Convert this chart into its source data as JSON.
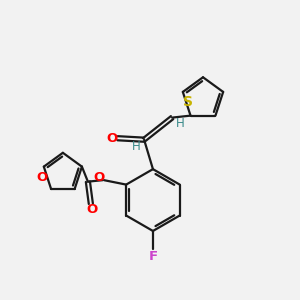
{
  "background_color": "#f2f2f2",
  "line_color": "#1a1a1a",
  "bond_lw": 1.6,
  "colors": {
    "S": "#c8b400",
    "O": "#ff0000",
    "F": "#cc44cc",
    "C": "#1a1a1a",
    "H_teal": "#3a8a8a"
  },
  "figsize": [
    3.0,
    3.0
  ],
  "dpi": 100
}
